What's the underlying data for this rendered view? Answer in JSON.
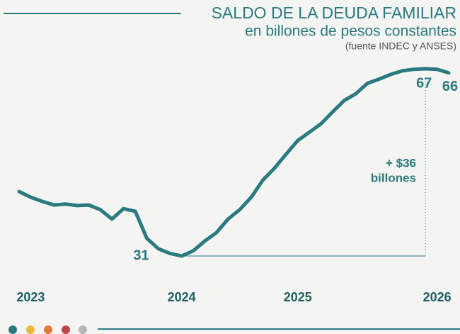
{
  "chart_data": {
    "type": "line",
    "title": "SALDO DE LA DEUDA FAMILIAR",
    "subtitle": "en billones de pesos constantes",
    "source": "(fuente INDEC y ANSES)",
    "annotation": [
      "+ $36",
      "billones"
    ],
    "categories": [
      null,
      "2023",
      null,
      null,
      null,
      null,
      null,
      null,
      null,
      null,
      null,
      null,
      null,
      null,
      "2024",
      null,
      null,
      null,
      null,
      null,
      null,
      null,
      null,
      null,
      "2025",
      null,
      null,
      null,
      null,
      null,
      null,
      null,
      null,
      null,
      null,
      null,
      "2026",
      null
    ],
    "series": [
      {
        "name": "Saldo de la deuda familiar",
        "color": "#2a7a80",
        "values": [
          43.4,
          42.3,
          41.5,
          40.8,
          41.0,
          40.7,
          40.8,
          39.9,
          38.1,
          40.1,
          39.6,
          34.4,
          32.4,
          31.5,
          31,
          32.0,
          33.9,
          35.5,
          38.1,
          39.9,
          42.3,
          45.6,
          47.9,
          50.6,
          53.2,
          54.8,
          56.4,
          58.7,
          60.9,
          62.2,
          64.2,
          65.0,
          65.9,
          66.6,
          66.9,
          67,
          66.9,
          66.2
        ],
        "value_labels": [
          null,
          null,
          null,
          null,
          null,
          null,
          null,
          null,
          null,
          null,
          null,
          null,
          null,
          null,
          "31",
          null,
          null,
          null,
          null,
          null,
          null,
          null,
          null,
          null,
          null,
          null,
          null,
          null,
          null,
          null,
          null,
          null,
          null,
          null,
          null,
          "67",
          null,
          "66"
        ]
      }
    ],
    "ylim": [
      26,
      72
    ]
  }
}
